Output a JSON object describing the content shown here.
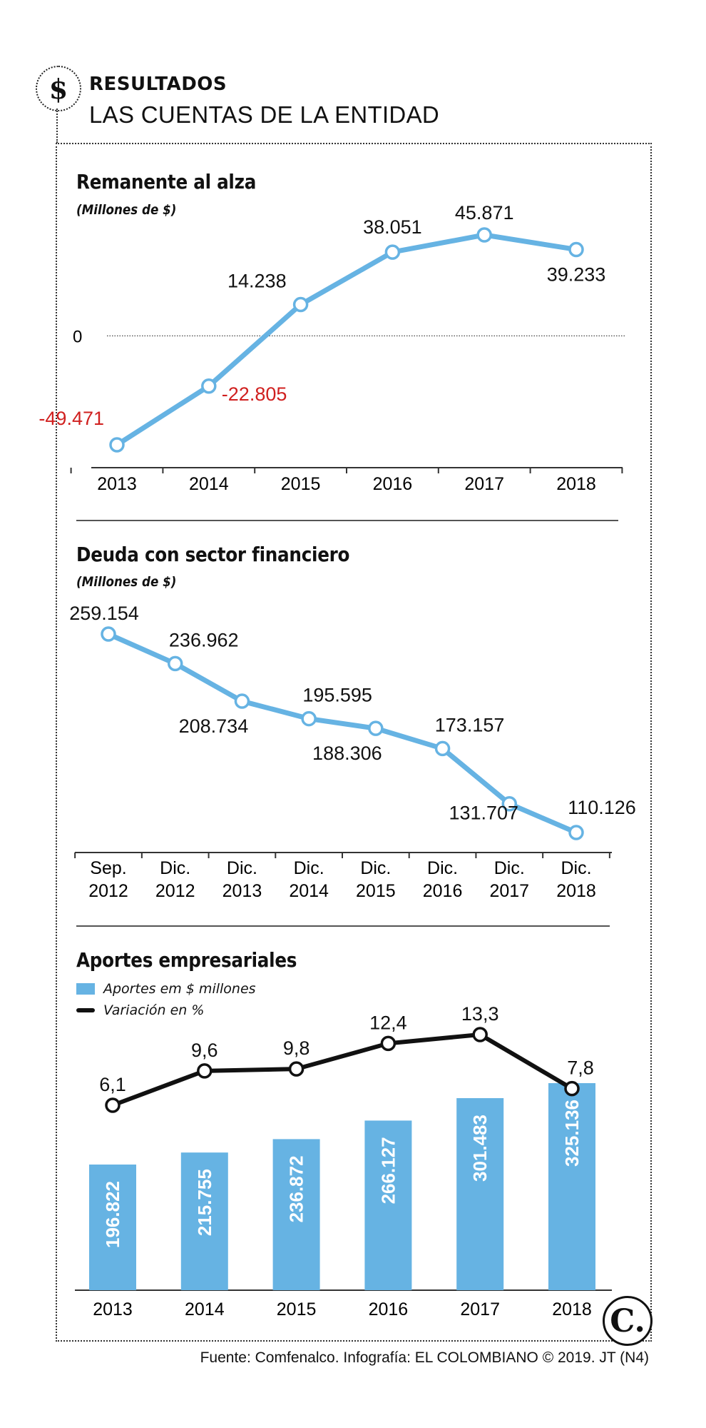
{
  "header": {
    "badge_symbol": "$",
    "kicker": "RESULTADOS",
    "headline": "LAS CUENTAS DE LA ENTIDAD"
  },
  "charts": {
    "remanente": {
      "title": "Remanente al alza",
      "subtitle": "(Millones de $)"
    },
    "deuda": {
      "title": "Deuda con sector financiero",
      "subtitle": "(Millones de $)"
    },
    "aportes": {
      "title": "Aportes empresariales",
      "legend_bars": "Aportes em $ millones",
      "legend_line": "Variación en %"
    }
  },
  "colors": {
    "line_blue": "#66b3e3",
    "bar_blue": "#66b3e3",
    "negative_red": "#d0201f",
    "dark": "#111111"
  },
  "logo": {
    "letter": "C."
  },
  "footer": {
    "source": "Fuente: Comfenalco. Infografía: EL COLOMBIANO © 2019. JT (N4)"
  },
  "chart_data": [
    {
      "type": "line",
      "title": "Remanente al alza",
      "subtitle": "(Millones de $)",
      "categories": [
        "2013",
        "2014",
        "2015",
        "2016",
        "2017",
        "2018"
      ],
      "values": [
        -49471,
        -22805,
        14238,
        38051,
        45871,
        39233
      ],
      "labels": [
        "-49.471",
        "-22.805",
        "14.238",
        "38.051",
        "45.871",
        "39.233"
      ],
      "zero_label": "0",
      "ylim": [
        -55000,
        50000
      ]
    },
    {
      "type": "line",
      "title": "Deuda con sector financiero",
      "subtitle": "(Millones de $)",
      "categories": [
        "Sep.\n2012",
        "Dic.\n2012",
        "Dic.\n2013",
        "Dic.\n2014",
        "Dic.\n2015",
        "Dic.\n2016",
        "Dic.\n2017",
        "Dic.\n2018"
      ],
      "values": [
        259154,
        236962,
        208734,
        195595,
        188306,
        173157,
        131707,
        110126
      ],
      "labels": [
        "259.154",
        "236.962",
        "208.734",
        "195.595",
        "188.306",
        "173.157",
        "131.707",
        "110.126"
      ],
      "ylim": [
        100000,
        265000
      ]
    },
    {
      "type": "bar",
      "title": "Aportes empresariales",
      "categories": [
        "2013",
        "2014",
        "2015",
        "2016",
        "2017",
        "2018"
      ],
      "series": [
        {
          "name": "Aportes em $ millones",
          "values": [
            196822,
            215755,
            236872,
            266127,
            301483,
            325136
          ],
          "labels": [
            "196.822",
            "215.755",
            "236.872",
            "266.127",
            "301.483",
            "325.136"
          ]
        },
        {
          "name": "Variación en %",
          "type": "line",
          "values": [
            6.1,
            9.6,
            9.8,
            12.4,
            13.3,
            7.8
          ],
          "labels": [
            "6,1",
            "9,6",
            "9,8",
            "12,4",
            "13,3",
            "7,8"
          ]
        }
      ]
    }
  ]
}
